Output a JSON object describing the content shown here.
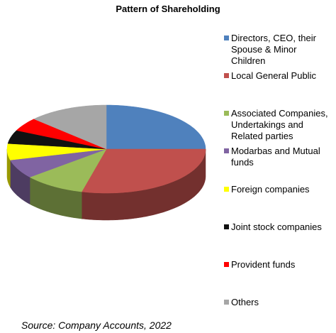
{
  "chart_data": {
    "type": "pie",
    "title": "Pattern of Shareholding",
    "categories": [
      "Directors, CEO, their Spouse & Minor Children",
      "Local General Public",
      "Associated Companies, Undertakings and Related parties",
      "Modarbas and Mutual funds",
      "Foreign companies",
      "Joint stock companies",
      "Provident funds",
      "Others"
    ],
    "values": [
      25,
      29,
      10,
      7,
      6,
      5,
      5,
      13
    ],
    "colors": [
      "#4f81bd",
      "#c0504d",
      "#9bbb59",
      "#8064a2",
      "#ffff00",
      "#111111",
      "#ff0000",
      "#a6a6a6"
    ],
    "legend": "right",
    "source": "Source: Company Accounts, 2022"
  }
}
